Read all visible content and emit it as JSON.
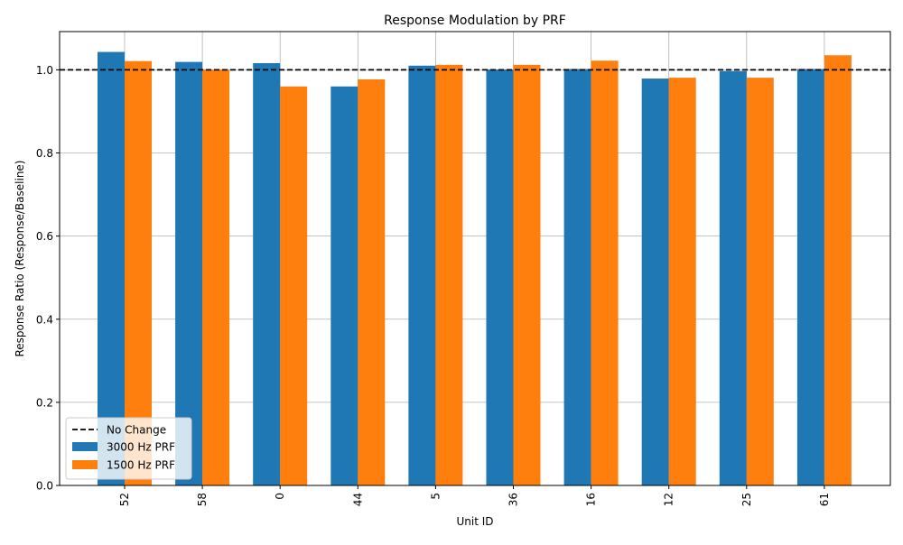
{
  "chart_data": {
    "type": "bar",
    "title": "Response Modulation by PRF",
    "xlabel": "Unit ID",
    "ylabel": "Response Ratio (Response/Baseline)",
    "categories": [
      "52",
      "58",
      "0",
      "44",
      "5",
      "36",
      "16",
      "12",
      "25",
      "61"
    ],
    "series": [
      {
        "name": "3000 Hz PRF",
        "color": "#1f77b4",
        "values": [
          1.043,
          1.019,
          1.016,
          0.96,
          1.01,
          1.001,
          1.002,
          0.979,
          0.997,
          1.002
        ]
      },
      {
        "name": "1500 Hz PRF",
        "color": "#ff7f0e",
        "values": [
          1.021,
          1.001,
          0.96,
          0.977,
          1.012,
          1.012,
          1.022,
          0.981,
          0.981,
          1.035
        ]
      }
    ],
    "reference_line": {
      "name": "No Change",
      "value": 1.0,
      "style": "dashed",
      "color": "#000000"
    },
    "ylim": [
      0,
      1.092
    ],
    "yticks": [
      "0.0",
      "0.2",
      "0.4",
      "0.6",
      "0.8",
      "1.0"
    ],
    "grid": true,
    "legend_position": "lower-left"
  }
}
